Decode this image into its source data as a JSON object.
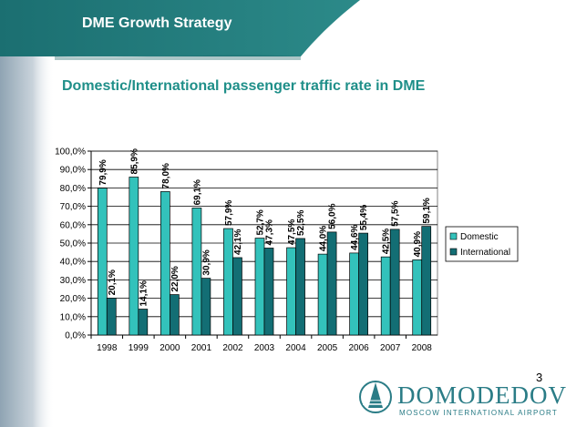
{
  "header": {
    "title": "DME Growth Strategy"
  },
  "page_number": "3",
  "logo": {
    "name": "DOMODEDOVO",
    "tagline": "MOSCOW INTERNATIONAL AIRPORT"
  },
  "colors": {
    "domestic": "#33c2bb",
    "international": "#136e74",
    "title": "#1f8f89",
    "header_band": "#1b6f71"
  },
  "chart_data": {
    "type": "bar",
    "title": "Domestic/International passenger traffic rate in DME",
    "xlabel": "",
    "ylabel": "",
    "categories": [
      "1998",
      "1999",
      "2000",
      "2001",
      "2002",
      "2003",
      "2004",
      "2005",
      "2006",
      "2007",
      "2008"
    ],
    "series": [
      {
        "name": "Domestic",
        "values": [
          79.9,
          85.9,
          78.0,
          69.1,
          57.9,
          52.7,
          47.5,
          44.0,
          44.6,
          42.5,
          40.9
        ],
        "labels": [
          "79,9%",
          "85,9%",
          "78,0%",
          "69,1%",
          "57,9%",
          "52,7%",
          "47,5%",
          "44,0%",
          "44,6%",
          "42,5%",
          "40,9%"
        ]
      },
      {
        "name": "International",
        "values": [
          20.1,
          14.1,
          22.0,
          30.9,
          42.1,
          47.3,
          52.5,
          56.0,
          55.4,
          57.5,
          59.1
        ],
        "labels": [
          "20,1%",
          "14,1%",
          "22,0%",
          "30,9%",
          "42,1%",
          "47,3%",
          "52,5%",
          "56,0%",
          "55,4%",
          "57,5%",
          "59,1%"
        ]
      }
    ],
    "ylim": [
      0,
      100
    ],
    "yticks": [
      "0,0%",
      "10,0%",
      "20,0%",
      "30,0%",
      "40,0%",
      "50,0%",
      "60,0%",
      "70,0%",
      "80,0%",
      "90,0%",
      "100,0%"
    ],
    "grid": true,
    "legend": "right"
  }
}
